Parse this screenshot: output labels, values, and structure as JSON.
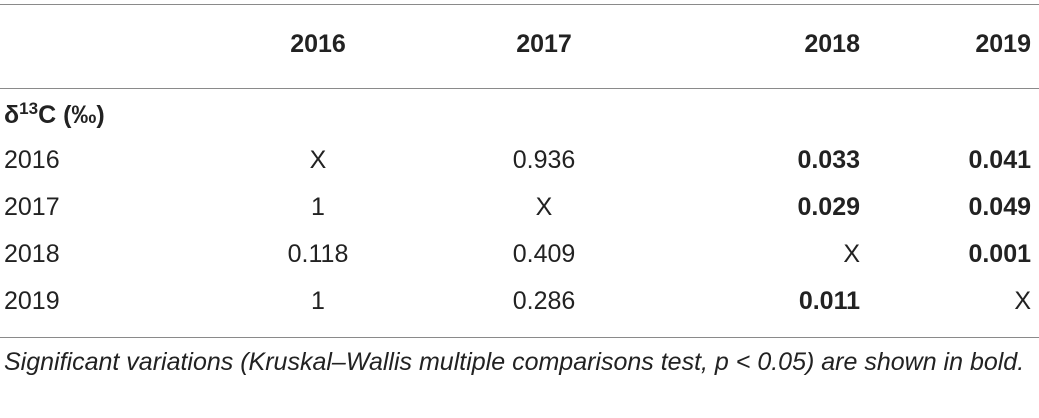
{
  "table": {
    "columns": [
      "",
      "2016",
      "2017",
      "2018",
      "2019"
    ],
    "section": {
      "symbol": "δ",
      "superscript": "13",
      "suffix": "C (‰)"
    },
    "rows": [
      {
        "label": "2016",
        "cells": [
          {
            "value": "X",
            "bold": false
          },
          {
            "value": "0.936",
            "bold": false
          },
          {
            "value": "0.033",
            "bold": true
          },
          {
            "value": "0.041",
            "bold": true
          }
        ]
      },
      {
        "label": "2017",
        "cells": [
          {
            "value": "1",
            "bold": false
          },
          {
            "value": "X",
            "bold": false
          },
          {
            "value": "0.029",
            "bold": true
          },
          {
            "value": "0.049",
            "bold": true
          }
        ]
      },
      {
        "label": "2018",
        "cells": [
          {
            "value": "0.118",
            "bold": false
          },
          {
            "value": "0.409",
            "bold": false
          },
          {
            "value": "X",
            "bold": false
          },
          {
            "value": "0.001",
            "bold": true
          }
        ]
      },
      {
        "label": "2019",
        "cells": [
          {
            "value": "1",
            "bold": false
          },
          {
            "value": "0.286",
            "bold": false
          },
          {
            "value": "0.011",
            "bold": true
          },
          {
            "value": "X",
            "bold": false
          }
        ]
      }
    ],
    "footnote": "Significant variations (Kruskal–Wallis multiple comparisons test, p < 0.05) are shown in bold."
  }
}
